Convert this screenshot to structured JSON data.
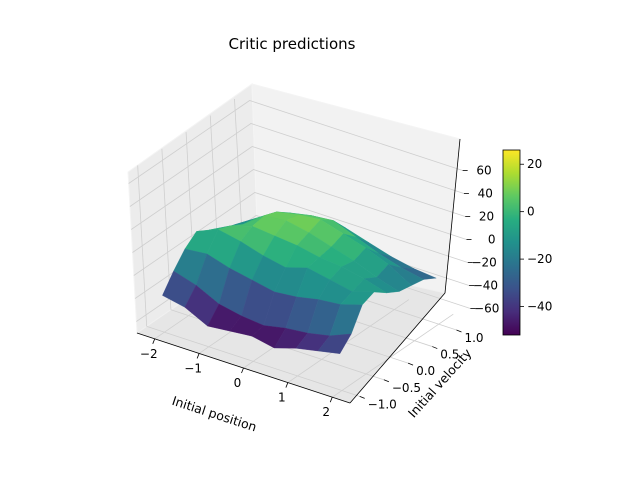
{
  "chart_data": {
    "type": "surface3d",
    "title": "Critic predictions",
    "xlabel": "Initial position",
    "ylabel": "Initial velocity",
    "zlabel": "",
    "x": [
      -2.0,
      -1.5,
      -1.0,
      -0.5,
      0.0,
      0.5,
      1.0,
      1.5,
      2.0
    ],
    "y": [
      -1.0,
      -0.75,
      -0.5,
      -0.25,
      0.0,
      0.25,
      0.5,
      0.75,
      1.0
    ],
    "z": [
      [
        -38,
        -42,
        -52,
        -50,
        -48,
        -52,
        -46,
        -42,
        -38
      ],
      [
        -24,
        -30,
        -40,
        -44,
        -46,
        -42,
        -40,
        -36,
        -28
      ],
      [
        -12,
        -10,
        -16,
        -20,
        -24,
        -22,
        -18,
        -16,
        -10
      ],
      [
        -4,
        4,
        0,
        -6,
        -10,
        -4,
        -8,
        -12,
        -6
      ],
      [
        -10,
        0,
        6,
        4,
        2,
        -2,
        -4,
        -8,
        -14
      ],
      [
        -16,
        -6,
        8,
        10,
        6,
        0,
        -6,
        -14,
        -20
      ],
      [
        -20,
        -8,
        4,
        8,
        10,
        4,
        -2,
        -10,
        -22
      ],
      [
        -26,
        -16,
        -4,
        0,
        2,
        -6,
        -14,
        -20,
        -24
      ],
      [
        -30,
        -24,
        -14,
        -10,
        -12,
        -18,
        -24,
        -28,
        -30
      ]
    ],
    "xlim": [
      -2.4,
      2.4
    ],
    "ylim": [
      -1.2,
      1.3
    ],
    "zlim": [
      -70,
      70
    ],
    "x_ticks": [
      "−2",
      "−1",
      "0",
      "1",
      "2"
    ],
    "y_ticks": [
      "−1.0",
      "−0.5",
      "0.0",
      "0.5",
      "1.0"
    ],
    "z_ticks": [
      "−60",
      "−40",
      "−20",
      "0",
      "20",
      "40",
      "60"
    ],
    "colorbar": {
      "colormap": "viridis",
      "min": -52,
      "max": 26,
      "ticks": [
        "20",
        "0",
        "−20",
        "−40"
      ]
    },
    "grid": true
  }
}
